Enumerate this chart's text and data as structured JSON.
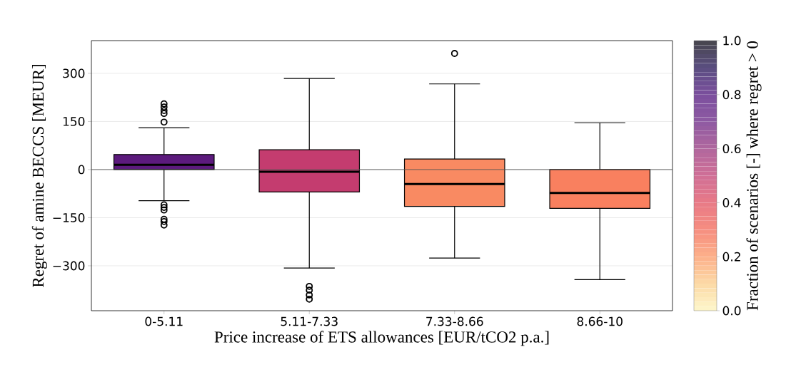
{
  "chart_data": {
    "type": "box",
    "xlabel": "Price increase of ETS allowances [EUR/tCO2 p.a.]",
    "ylabel": "Regret of amine BECCS [MEUR]",
    "clabel": "Fraction of scenarios [-] where regret > 0",
    "categories": [
      "0-5.11",
      "5.11-7.33",
      "7.33-8.66",
      "8.66-10"
    ],
    "boxes": [
      {
        "low": -97,
        "q1": 0,
        "median": 15,
        "q3": 47,
        "high": 130,
        "outliers": [
          205,
          195,
          184,
          175,
          148,
          -110,
          -118,
          -126,
          -155,
          -162,
          -173
        ]
      },
      {
        "low": -307,
        "q1": -70,
        "median": -7,
        "q3": 62,
        "high": 284,
        "outliers": [
          -364,
          -376,
          -391,
          -404
        ]
      },
      {
        "low": -276,
        "q1": -115,
        "median": -45,
        "q3": 33,
        "high": 267,
        "outliers": [
          362
        ]
      },
      {
        "low": -343,
        "q1": -121,
        "median": -73,
        "q3": 0,
        "high": 146
      }
    ],
    "colors": [
      "#5c1a7d",
      "#c43c6f",
      "#f98a62",
      "#f9805f"
    ],
    "ylim": [
      -440,
      402
    ],
    "yticks": [
      {
        "value": -300,
        "label": "−300"
      },
      {
        "value": -150,
        "label": "−150"
      },
      0,
      150,
      300
    ],
    "grid": "y",
    "ref_lines": [
      {
        "axis": "y",
        "value": 0,
        "color": "#555555"
      }
    ],
    "clim": [
      0,
      1
    ],
    "cticks": [
      {
        "value": 0,
        "label": "0.0"
      },
      {
        "value": 0.2,
        "label": "0.2"
      },
      {
        "value": 0.4,
        "label": "0.4"
      },
      {
        "value": 0.6,
        "label": "0.6"
      },
      {
        "value": 0.8,
        "label": "0.8"
      },
      {
        "value": 1,
        "label": "1.0"
      }
    ]
  }
}
